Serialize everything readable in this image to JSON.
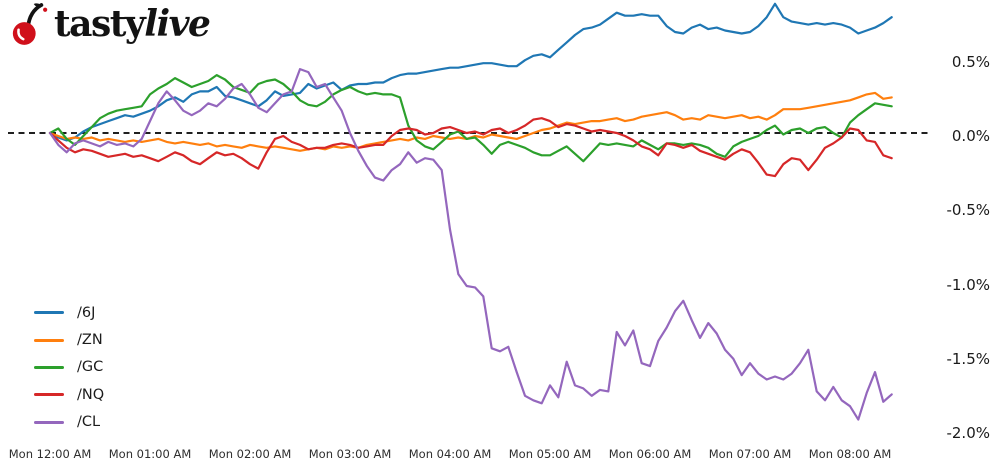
{
  "logo": {
    "brand_first": "tasty",
    "brand_second": "live",
    "cherry_color": "#d0101b",
    "stem_color": "#131313"
  },
  "chart_data": {
    "type": "line",
    "title": "",
    "unit": "percent-change",
    "grid": false,
    "legend_position": "lower left",
    "zero_line": {
      "value": 0.0,
      "style": "dashed",
      "color": "#000000"
    },
    "x_axis": {
      "tick_labels": [
        "Mon 12:00 AM",
        "Mon 01:00 AM",
        "Mon 02:00 AM",
        "Mon 03:00 AM",
        "Mon 04:00 AM",
        "Mon 05:00 AM",
        "Mon 06:00 AM",
        "Mon 07:00 AM",
        "Mon 08:00 AM"
      ],
      "tick_hours": [
        0,
        1,
        2,
        3,
        4,
        5,
        6,
        7,
        8
      ]
    },
    "y_axis": {
      "tick_labels": [
        "0.5%",
        "0.0%",
        "-0.5%",
        "-1.0%",
        "-1.5%",
        "-2.0%"
      ],
      "tick_values": [
        0.5,
        0.0,
        -0.5,
        -1.0,
        -1.5,
        -2.0
      ],
      "range": [
        -2.0,
        0.9
      ]
    },
    "start_hour": 0,
    "interval_minutes": 5,
    "series": [
      {
        "name": "/6J",
        "color": "#1f77b4",
        "values": [
          0.0,
          -0.03,
          -0.05,
          -0.03,
          0.01,
          0.04,
          0.06,
          0.08,
          0.1,
          0.12,
          0.11,
          0.13,
          0.15,
          0.18,
          0.22,
          0.24,
          0.21,
          0.26,
          0.28,
          0.28,
          0.31,
          0.25,
          0.24,
          0.22,
          0.2,
          0.18,
          0.22,
          0.28,
          0.25,
          0.26,
          0.27,
          0.33,
          0.3,
          0.32,
          0.34,
          0.29,
          0.32,
          0.33,
          0.33,
          0.34,
          0.34,
          0.37,
          0.39,
          0.4,
          0.4,
          0.41,
          0.42,
          0.43,
          0.44,
          0.44,
          0.45,
          0.46,
          0.47,
          0.47,
          0.46,
          0.45,
          0.45,
          0.49,
          0.52,
          0.53,
          0.51,
          0.56,
          0.61,
          0.66,
          0.7,
          0.71,
          0.73,
          0.77,
          0.81,
          0.79,
          0.79,
          0.8,
          0.79,
          0.79,
          0.72,
          0.68,
          0.67,
          0.71,
          0.73,
          0.7,
          0.71,
          0.69,
          0.68,
          0.67,
          0.68,
          0.72,
          0.78,
          0.87,
          0.78,
          0.75,
          0.74,
          0.73,
          0.74,
          0.73,
          0.74,
          0.73,
          0.71,
          0.67,
          0.69,
          0.71,
          0.74,
          0.78
        ]
      },
      {
        "name": "/ZN",
        "color": "#ff7f0e",
        "values": [
          0.0,
          -0.02,
          -0.04,
          -0.03,
          -0.04,
          -0.03,
          -0.05,
          -0.04,
          -0.05,
          -0.06,
          -0.05,
          -0.06,
          -0.05,
          -0.04,
          -0.06,
          -0.07,
          -0.06,
          -0.07,
          -0.08,
          -0.07,
          -0.09,
          -0.08,
          -0.09,
          -0.1,
          -0.08,
          -0.09,
          -0.1,
          -0.09,
          -0.1,
          -0.11,
          -0.12,
          -0.11,
          -0.1,
          -0.11,
          -0.09,
          -0.1,
          -0.09,
          -0.1,
          -0.08,
          -0.07,
          -0.06,
          -0.05,
          -0.04,
          -0.05,
          -0.03,
          -0.04,
          -0.02,
          -0.03,
          -0.04,
          -0.03,
          -0.04,
          -0.02,
          -0.03,
          -0.01,
          -0.02,
          -0.03,
          -0.04,
          -0.02,
          0.0,
          0.02,
          0.03,
          0.05,
          0.07,
          0.06,
          0.07,
          0.08,
          0.08,
          0.09,
          0.1,
          0.08,
          0.09,
          0.11,
          0.12,
          0.13,
          0.14,
          0.12,
          0.09,
          0.1,
          0.09,
          0.12,
          0.11,
          0.1,
          0.11,
          0.12,
          0.1,
          0.11,
          0.09,
          0.12,
          0.16,
          0.16,
          0.16,
          0.17,
          0.18,
          0.19,
          0.2,
          0.21,
          0.22,
          0.24,
          0.26,
          0.27,
          0.23,
          0.24
        ]
      },
      {
        "name": "/GC",
        "color": "#2ca02c",
        "values": [
          0.0,
          0.03,
          -0.04,
          -0.08,
          -0.02,
          0.04,
          0.1,
          0.13,
          0.15,
          0.16,
          0.17,
          0.18,
          0.26,
          0.3,
          0.33,
          0.37,
          0.34,
          0.31,
          0.33,
          0.35,
          0.39,
          0.36,
          0.31,
          0.29,
          0.27,
          0.33,
          0.35,
          0.36,
          0.33,
          0.28,
          0.22,
          0.19,
          0.18,
          0.21,
          0.26,
          0.29,
          0.31,
          0.28,
          0.26,
          0.27,
          0.26,
          0.26,
          0.24,
          0.05,
          -0.05,
          -0.09,
          -0.11,
          -0.06,
          -0.01,
          0.01,
          -0.04,
          -0.03,
          -0.08,
          -0.14,
          -0.08,
          -0.06,
          -0.08,
          -0.1,
          -0.13,
          -0.15,
          -0.15,
          -0.12,
          -0.09,
          -0.14,
          -0.19,
          -0.13,
          -0.07,
          -0.08,
          -0.07,
          -0.08,
          -0.09,
          -0.05,
          -0.08,
          -0.11,
          -0.07,
          -0.07,
          -0.08,
          -0.07,
          -0.08,
          -0.1,
          -0.14,
          -0.16,
          -0.09,
          -0.06,
          -0.04,
          -0.02,
          0.02,
          0.05,
          -0.01,
          0.02,
          0.03,
          0.0,
          0.03,
          0.04,
          0.0,
          -0.03,
          0.07,
          0.12,
          0.16,
          0.2,
          0.19,
          0.18
        ]
      },
      {
        "name": "/NQ",
        "color": "#d62728",
        "values": [
          0.0,
          -0.05,
          -0.1,
          -0.13,
          -0.11,
          -0.12,
          -0.14,
          -0.16,
          -0.15,
          -0.14,
          -0.16,
          -0.15,
          -0.17,
          -0.19,
          -0.16,
          -0.13,
          -0.15,
          -0.19,
          -0.21,
          -0.17,
          -0.13,
          -0.15,
          -0.14,
          -0.17,
          -0.21,
          -0.24,
          -0.13,
          -0.04,
          -0.02,
          -0.06,
          -0.08,
          -0.11,
          -0.1,
          -0.1,
          -0.08,
          -0.07,
          -0.08,
          -0.1,
          -0.09,
          -0.08,
          -0.08,
          -0.02,
          0.02,
          0.03,
          0.02,
          -0.01,
          0.0,
          0.03,
          0.04,
          0.02,
          0.0,
          0.01,
          -0.01,
          0.02,
          0.03,
          0.0,
          0.02,
          0.05,
          0.09,
          0.1,
          0.08,
          0.04,
          0.06,
          0.05,
          0.03,
          0.01,
          0.02,
          0.01,
          0.0,
          -0.02,
          -0.05,
          -0.09,
          -0.11,
          -0.15,
          -0.07,
          -0.08,
          -0.1,
          -0.08,
          -0.12,
          -0.14,
          -0.16,
          -0.18,
          -0.14,
          -0.11,
          -0.13,
          -0.2,
          -0.28,
          -0.29,
          -0.21,
          -0.17,
          -0.18,
          -0.25,
          -0.18,
          -0.1,
          -0.07,
          -0.03,
          0.03,
          0.02,
          -0.05,
          -0.06,
          -0.15,
          -0.17
        ]
      },
      {
        "name": "/CL",
        "color": "#9467bd",
        "values": [
          0.0,
          -0.08,
          -0.13,
          -0.07,
          -0.05,
          -0.07,
          -0.09,
          -0.06,
          -0.08,
          -0.07,
          -0.09,
          -0.04,
          0.08,
          0.2,
          0.28,
          0.22,
          0.15,
          0.12,
          0.15,
          0.2,
          0.18,
          0.23,
          0.3,
          0.33,
          0.26,
          0.17,
          0.14,
          0.2,
          0.26,
          0.28,
          0.43,
          0.41,
          0.31,
          0.33,
          0.24,
          0.15,
          0.0,
          -0.12,
          -0.22,
          -0.3,
          -0.32,
          -0.25,
          -0.21,
          -0.13,
          -0.2,
          -0.17,
          -0.18,
          -0.25,
          -0.65,
          -0.95,
          -1.03,
          -1.04,
          -1.1,
          -1.45,
          -1.47,
          -1.44,
          -1.61,
          -1.77,
          -1.8,
          -1.82,
          -1.7,
          -1.78,
          -1.54,
          -1.7,
          -1.72,
          -1.77,
          -1.73,
          -1.74,
          -1.34,
          -1.43,
          -1.33,
          -1.55,
          -1.57,
          -1.4,
          -1.31,
          -1.2,
          -1.13,
          -1.26,
          -1.38,
          -1.28,
          -1.35,
          -1.46,
          -1.52,
          -1.63,
          -1.55,
          -1.62,
          -1.66,
          -1.64,
          -1.66,
          -1.62,
          -1.55,
          -1.46,
          -1.74,
          -1.8,
          -1.71,
          -1.8,
          -1.84,
          -1.93,
          -1.75,
          -1.61,
          -1.81,
          -1.76
        ]
      }
    ]
  }
}
